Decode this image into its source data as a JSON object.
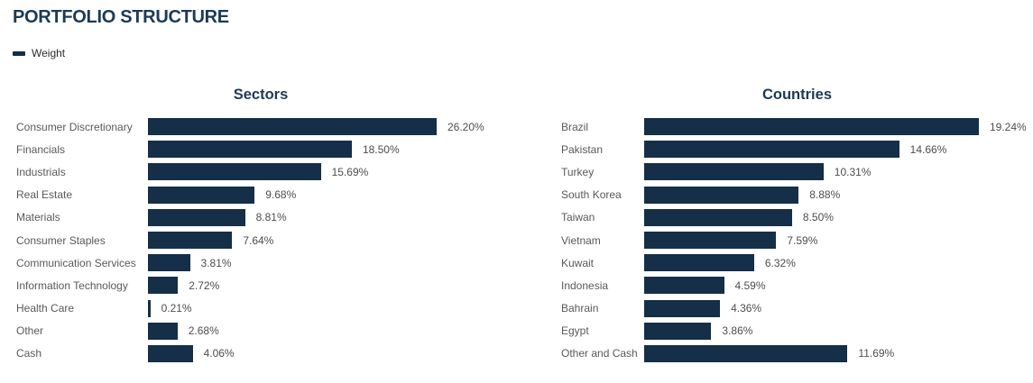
{
  "page": {
    "title": "PORTFOLIO STRUCTURE"
  },
  "legend": {
    "label": "Weight",
    "color": "#142f47"
  },
  "chart_data": [
    {
      "type": "bar",
      "orientation": "horizontal",
      "title": "Sectors",
      "series_name": "Weight",
      "categories": [
        "Consumer Discretionary",
        "Financials",
        "Industrials",
        "Real Estate",
        "Materials",
        "Consumer Staples",
        "Communication Services",
        "Information Technology",
        "Health Care",
        "Other",
        "Cash"
      ],
      "values": [
        26.2,
        18.5,
        15.69,
        9.68,
        8.81,
        7.64,
        3.81,
        2.72,
        0.21,
        2.68,
        4.06
      ],
      "value_suffix": "%",
      "data_labels": [
        "26.20%",
        "18.50%",
        "15.69%",
        "9.68%",
        "8.81%",
        "7.64%",
        "3.81%",
        "2.72%",
        "0.21%",
        "2.68%",
        "4.06%"
      ],
      "bar_color": "#142f47",
      "legend_position": "top-left",
      "grid": false
    },
    {
      "type": "bar",
      "orientation": "horizontal",
      "title": "Countries",
      "series_name": "Weight",
      "categories": [
        "Brazil",
        "Pakistan",
        "Turkey",
        "South Korea",
        "Taiwan",
        "Vietnam",
        "Kuwait",
        "Indonesia",
        "Bahrain",
        "Egypt",
        "Other and Cash"
      ],
      "values": [
        19.24,
        14.66,
        10.31,
        8.88,
        8.5,
        7.59,
        6.32,
        4.59,
        4.36,
        3.86,
        11.69
      ],
      "value_suffix": "%",
      "data_labels": [
        "19.24%",
        "14.66%",
        "10.31%",
        "8.88%",
        "8.50%",
        "7.59%",
        "6.32%",
        "4.59%",
        "4.36%",
        "3.86%",
        "11.69%"
      ],
      "bar_color": "#142f47",
      "legend_position": "top-left",
      "grid": false
    }
  ]
}
